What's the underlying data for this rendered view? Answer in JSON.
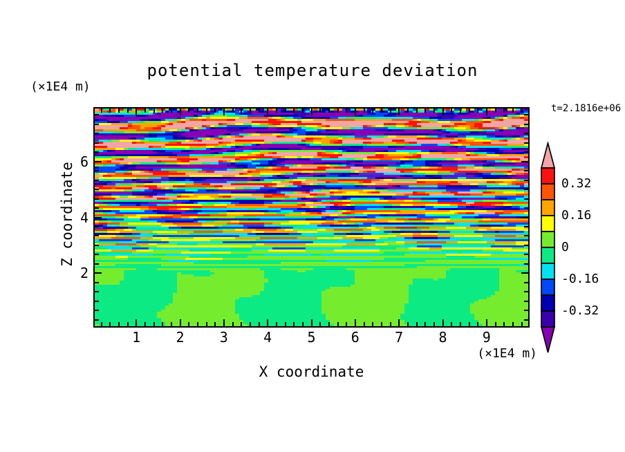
{
  "page": {
    "background": "#FFFFFF",
    "text_color": "#000000",
    "frame_color": "#000000"
  },
  "chart_data": {
    "type": "heatmap",
    "subtype": "filled-contour",
    "title": "potential temperature deviation",
    "xlabel": "X coordinate",
    "ylabel": "Z coordinate",
    "x_unit_label": "(×1E4 m)",
    "z_unit_label": "(×1E4 m)",
    "time_label": "t=2.1816e+06",
    "x_range": [
      0.05,
      9.95
    ],
    "z_range": [
      0.1,
      7.9
    ],
    "x_major_ticks": [
      1,
      2,
      3,
      4,
      5,
      6,
      7,
      8,
      9
    ],
    "x_minor_step": 0.2,
    "z_major_ticks": [
      2,
      4,
      6
    ],
    "z_minor_step": 0.33333,
    "grid": false,
    "legend_position": "right",
    "colorbar": {
      "levels": [
        -0.4,
        -0.32,
        -0.24,
        -0.16,
        -0.08,
        0,
        0.08,
        0.16,
        0.24,
        0.32,
        0.4
      ],
      "colors": [
        "#8800B4",
        "#3A00AE",
        "#0000B2",
        "#0048F8",
        "#00E2F2",
        "#0CEA84",
        "#76EC2E",
        "#FFFF00",
        "#FFA400",
        "#FF5400",
        "#FB1210",
        "#F2A4A6"
      ],
      "under_color": "#8800B4",
      "over_color": "#F2A4A6",
      "tick_labels": [
        {
          "text": "0.32",
          "level": 0.32
        },
        {
          "text": "0.16",
          "level": 0.16
        },
        {
          "text": "0",
          "level": 0
        },
        {
          "text": "-0.16",
          "level": -0.16
        },
        {
          "text": "-0.32",
          "level": -0.32
        }
      ]
    },
    "field_model": {
      "description": "Stratified gravity-wave temperature-deviation field: saturated pink (>0.4) / purple (<-0.4) horizontal bands above z~4.6 with thin rainbow contour transitions; finer red/orange and blue/navy stripes over green-cyan background for 2<z<4.6; near-zero blobby convective region (two green bins only) below z=2; thin multicolour strip at very top.",
      "grid": [
        105,
        105
      ],
      "amplitude_profile": [
        [
          2,
          0.05
        ],
        [
          2.6,
          0.11
        ],
        [
          3.2,
          0.26
        ],
        [
          4,
          0.37
        ],
        [
          4.6,
          0.47
        ],
        [
          5.2,
          0.53
        ],
        [
          6,
          0.59
        ],
        [
          7.9,
          0.65
        ]
      ],
      "wavelength_profile": [
        [
          2,
          0.21
        ],
        [
          3,
          0.24
        ],
        [
          4,
          0.3
        ],
        [
          5,
          0.4
        ],
        [
          6,
          0.52
        ],
        [
          7,
          0.64
        ],
        [
          7.9,
          0.74
        ]
      ],
      "tilt": {
        "wx1": 9.5,
        "sz1": 0.75,
        "a1": 0.95,
        "wx2": 3.6,
        "sz2": 1.8,
        "p2": 1.4,
        "a2": 0.5,
        "shear": 0.22
      },
      "modulation": {
        "base": 0.78,
        "amp": 0.34,
        "wx": 2.4,
        "sz": 2.7,
        "p": 1.0,
        "wx2": 7.1,
        "sz2": 1.1
      },
      "harmonic": {
        "amp": 0.16,
        "mult": 2.35,
        "wx": 1.8,
        "sz": 1.2,
        "p": 0.7
      },
      "boundary_z": 2.0,
      "blend_width": 0.4,
      "bottom": {
        "amp": 0.058,
        "wx": 3.6,
        "s1": 1.15,
        "s2": 1.55,
        "s3": 0.7,
        "drift": 0.3,
        "p": 2.2,
        "env_w": 1.05,
        "env_p": 0.2,
        "amp2": 0.014,
        "wx2": 1.5,
        "sz2": 2.6,
        "p2": 1.0
      },
      "top_strip": {
        "z_start": 7.75,
        "width": 0.15,
        "amp": 0.5,
        "wx": 0.5,
        "sz": 55
      }
    },
    "ticks_style": {
      "major_len": 10,
      "minor_len": 6,
      "width": 2,
      "inward": true,
      "all_four_sides": true
    }
  }
}
